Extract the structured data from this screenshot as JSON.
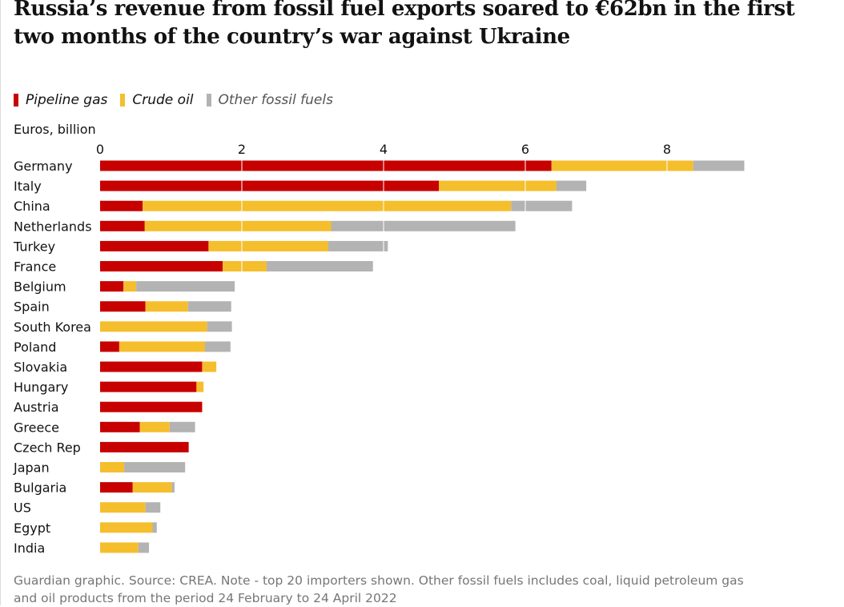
{
  "title": "Russia’s revenue from fossil fuel exports soared to €62bn in the first two months of the country’s war against Ukraine",
  "legend": {
    "pipeline_gas": "Pipeline gas",
    "crude_oil": "Crude oil",
    "other": "Other fossil fuels"
  },
  "colors": {
    "pipeline_gas": "#c70000",
    "crude_oil": "#f5be2c",
    "other": "#b3b3b3"
  },
  "unit_label": "Euros, billion",
  "source": "Guardian graphic. Source: CREA. Note - top 20 importers shown. Other fossil fuels includes coal, liquid petroleum gas and oil products from the period 24 February to 24 April 2022",
  "chart_data": {
    "type": "bar",
    "orientation": "horizontal",
    "stacked": true,
    "ylabel": "Euros, billion",
    "xlim": [
      0,
      9
    ],
    "xticks": [
      0,
      2,
      4,
      6,
      8
    ],
    "gridlines_in_front": true,
    "legend_position": "top-left",
    "categories": [
      "Germany",
      "Italy",
      "China",
      "Netherlands",
      "Turkey",
      "France",
      "Belgium",
      "Spain",
      "South Korea",
      "Poland",
      "Slovakia",
      "Hungary",
      "Austria",
      "Greece",
      "Czech Rep",
      "Japan",
      "Bulgaria",
      "US",
      "Egypt",
      "India"
    ],
    "series": [
      {
        "name": "Pipeline gas",
        "values": [
          6.37,
          4.78,
          0.6,
          0.63,
          1.53,
          1.73,
          0.33,
          0.64,
          0,
          0.27,
          1.44,
          1.36,
          1.44,
          0.56,
          1.25,
          0,
          0.46,
          0,
          0,
          0
        ]
      },
      {
        "name": "Crude oil",
        "values": [
          2.0,
          1.66,
          5.2,
          2.63,
          1.69,
          0.62,
          0.18,
          0.6,
          1.51,
          1.21,
          0.2,
          0.1,
          0,
          0.42,
          0,
          0.34,
          0.55,
          0.64,
          0.74,
          0.54
        ]
      },
      {
        "name": "Other fossil fuels",
        "values": [
          0.72,
          0.42,
          0.86,
          2.6,
          0.84,
          1.5,
          1.39,
          0.61,
          0.35,
          0.36,
          0,
          0,
          0,
          0.36,
          0,
          0.86,
          0.04,
          0.21,
          0.06,
          0.15
        ]
      }
    ]
  }
}
